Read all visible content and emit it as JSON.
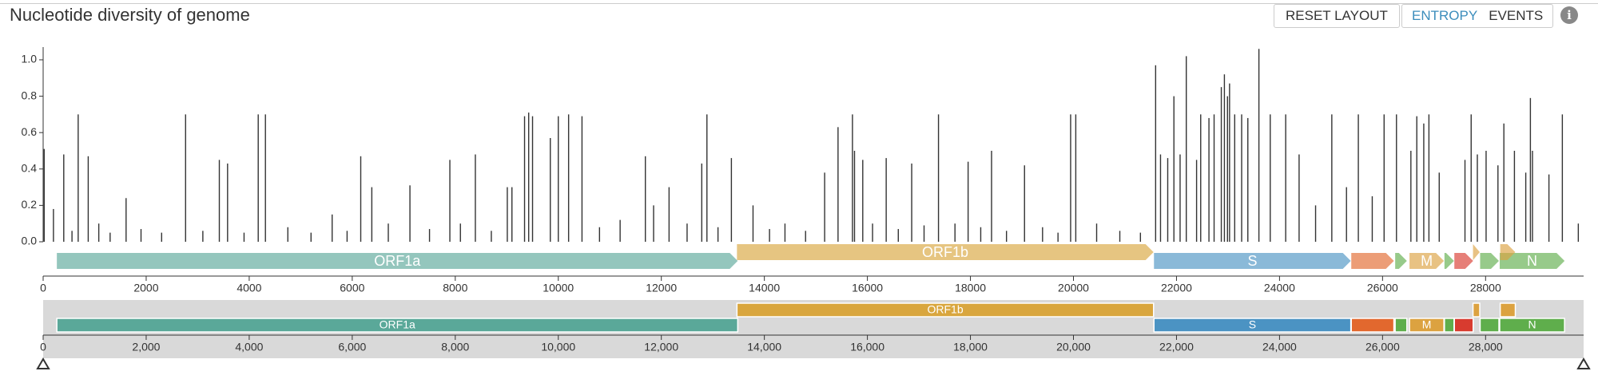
{
  "header": {
    "buttons": [
      "RESET LAYOUT"
    ],
    "tabs": [
      "ENTROPY",
      "EVENTS"
    ]
  },
  "chart_data": {
    "type": "bar",
    "title": "Nucleotide diversity of genome",
    "color": "#333333",
    "x": [
      20,
      200,
      400,
      560,
      680,
      875,
      1080,
      1300,
      1610,
      1900,
      2300,
      2765,
      3100,
      3420,
      3580,
      3900,
      4175,
      4315,
      4750,
      5200,
      5610,
      5900,
      6165,
      6380,
      6700,
      7120,
      7500,
      7895,
      8100,
      8390,
      8700,
      9010,
      9100,
      9345,
      9425,
      9500,
      9845,
      10000,
      10200,
      10460,
      10800,
      11200,
      11690,
      11850,
      12150,
      12500,
      12785,
      12885,
      13100,
      13360,
      13780,
      14100,
      14400,
      14800,
      15170,
      15430,
      15710,
      15750,
      15910,
      16100,
      16365,
      16600,
      16860,
      17100,
      17380,
      17700,
      17955,
      18200,
      18410,
      18700,
      19050,
      19400,
      19700,
      19945,
      20045,
      20450,
      20900,
      21300,
      21595,
      21690,
      21830,
      21950,
      22070,
      22190,
      22390,
      22470,
      22630,
      22730,
      22870,
      22930,
      22990,
      23030,
      23130,
      23265,
      23385,
      23600,
      23820,
      24120,
      24380,
      24700,
      25015,
      25300,
      25530,
      25800,
      26030,
      26270,
      26550,
      26665,
      26800,
      26900,
      27100,
      27600,
      27720,
      27840,
      28010,
      28240,
      28355,
      28560,
      28780,
      28870,
      28910,
      29230,
      29490,
      29800
    ],
    "values": [
      0.51,
      0.18,
      0.48,
      0.06,
      0.7,
      0.47,
      0.1,
      0.05,
      0.24,
      0.07,
      0.05,
      0.7,
      0.06,
      0.45,
      0.43,
      0.05,
      0.7,
      0.7,
      0.08,
      0.05,
      0.15,
      0.06,
      0.47,
      0.3,
      0.1,
      0.31,
      0.07,
      0.45,
      0.1,
      0.48,
      0.06,
      0.3,
      0.3,
      0.69,
      0.71,
      0.69,
      0.57,
      0.69,
      0.7,
      0.69,
      0.08,
      0.12,
      0.47,
      0.2,
      0.3,
      0.1,
      0.43,
      0.7,
      0.08,
      0.46,
      0.2,
      0.07,
      0.1,
      0.06,
      0.38,
      0.63,
      0.7,
      0.5,
      0.45,
      0.1,
      0.46,
      0.07,
      0.43,
      0.09,
      0.7,
      0.1,
      0.44,
      0.08,
      0.5,
      0.06,
      0.42,
      0.08,
      0.05,
      0.7,
      0.7,
      0.1,
      0.06,
      0.05,
      0.97,
      0.48,
      0.46,
      0.8,
      0.48,
      1.02,
      0.45,
      0.7,
      0.68,
      0.7,
      0.85,
      0.92,
      0.8,
      0.87,
      0.7,
      0.7,
      0.68,
      1.06,
      0.7,
      0.7,
      0.48,
      0.2,
      0.7,
      0.3,
      0.7,
      0.25,
      0.7,
      0.7,
      0.5,
      0.69,
      0.65,
      0.7,
      0.38,
      0.45,
      0.7,
      0.48,
      0.5,
      0.42,
      0.65,
      0.5,
      0.38,
      0.79,
      0.5,
      0.37,
      0.7,
      0.1
    ],
    "xlim": [
      0,
      29903
    ],
    "xticks": [
      0,
      2000,
      4000,
      6000,
      8000,
      10000,
      12000,
      14000,
      16000,
      18000,
      20000,
      22000,
      24000,
      26000,
      28000
    ],
    "ylim": [
      0,
      1.07
    ],
    "yticks": [
      {
        "value": 0,
        "label": "0.0"
      },
      0.2,
      0.4,
      0.6,
      0.8,
      {
        "value": 1,
        "label": "1.0"
      }
    ],
    "genes": [
      {
        "name": "ORF1a",
        "start": 266,
        "end": 13483,
        "color": "#5aa899"
      },
      {
        "name": "ORF1b",
        "start": 13468,
        "end": 21555,
        "color": "#d9a63e"
      },
      {
        "name": "S",
        "start": 21563,
        "end": 25384,
        "color": "#4b93c3"
      },
      {
        "start": 25393,
        "end": 26220,
        "color": "#e2682e"
      },
      {
        "start": 26245,
        "end": 26472,
        "color": "#5fae4c"
      },
      {
        "name": "M",
        "start": 26523,
        "end": 27191,
        "color": "#dca240"
      },
      {
        "start": 27202,
        "end": 27387,
        "color": "#5fae4c"
      },
      {
        "start": 27394,
        "end": 27759,
        "color": "#d83b2f"
      },
      {
        "start": 27756,
        "end": 27887,
        "color": "#dca240"
      },
      {
        "start": 27894,
        "end": 28259,
        "color": "#5fae4c"
      },
      {
        "name": "N",
        "start": 28274,
        "end": 29533,
        "color": "#5fae4c"
      },
      {
        "start": 28284,
        "end": 28577,
        "color": "#dca240"
      }
    ],
    "navigator_xticks": [
      0,
      {
        "value": 2000,
        "label": "2,000"
      },
      {
        "value": 4000,
        "label": "4,000"
      },
      {
        "value": 6000,
        "label": "6,000"
      },
      {
        "value": 8000,
        "label": "8,000"
      },
      {
        "value": 10000,
        "label": "10,000"
      },
      {
        "value": 12000,
        "label": "12,000"
      },
      {
        "value": 14000,
        "label": "14,000"
      },
      {
        "value": 16000,
        "label": "16,000"
      },
      {
        "value": 18000,
        "label": "18,000"
      },
      {
        "value": 20000,
        "label": "20,000"
      },
      {
        "value": 22000,
        "label": "22,000"
      },
      {
        "value": 24000,
        "label": "24,000"
      },
      {
        "value": 26000,
        "label": "26,000"
      },
      {
        "value": 28000,
        "label": "28,000"
      }
    ]
  }
}
